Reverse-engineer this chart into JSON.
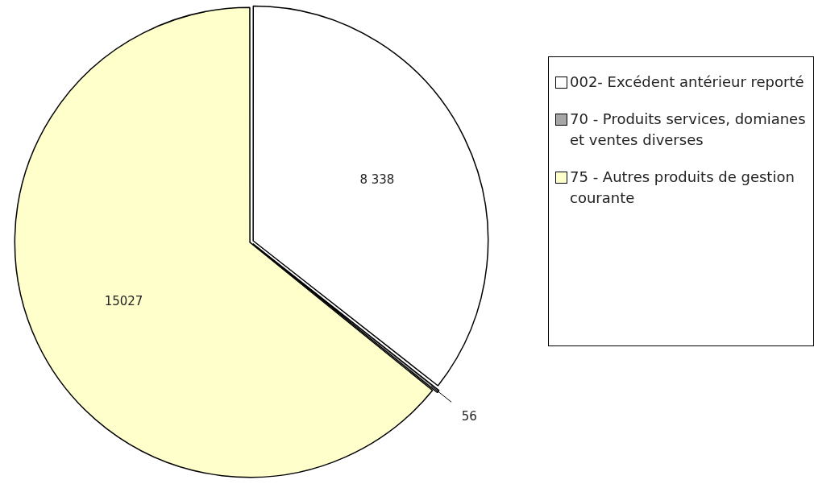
{
  "chart_data": {
    "type": "pie",
    "categories": [
      "002- Excédent antérieur reporté",
      "70 - Produits services, domianes et ventes diverses",
      "75 - Autres produits de gestion courante"
    ],
    "values": [
      8338,
      56,
      15027
    ],
    "colors": [
      "#ffffff",
      "#a6a6a6",
      "#ffffcc"
    ],
    "value_labels": [
      "8 338",
      "56",
      "15027"
    ],
    "legend": "right"
  }
}
